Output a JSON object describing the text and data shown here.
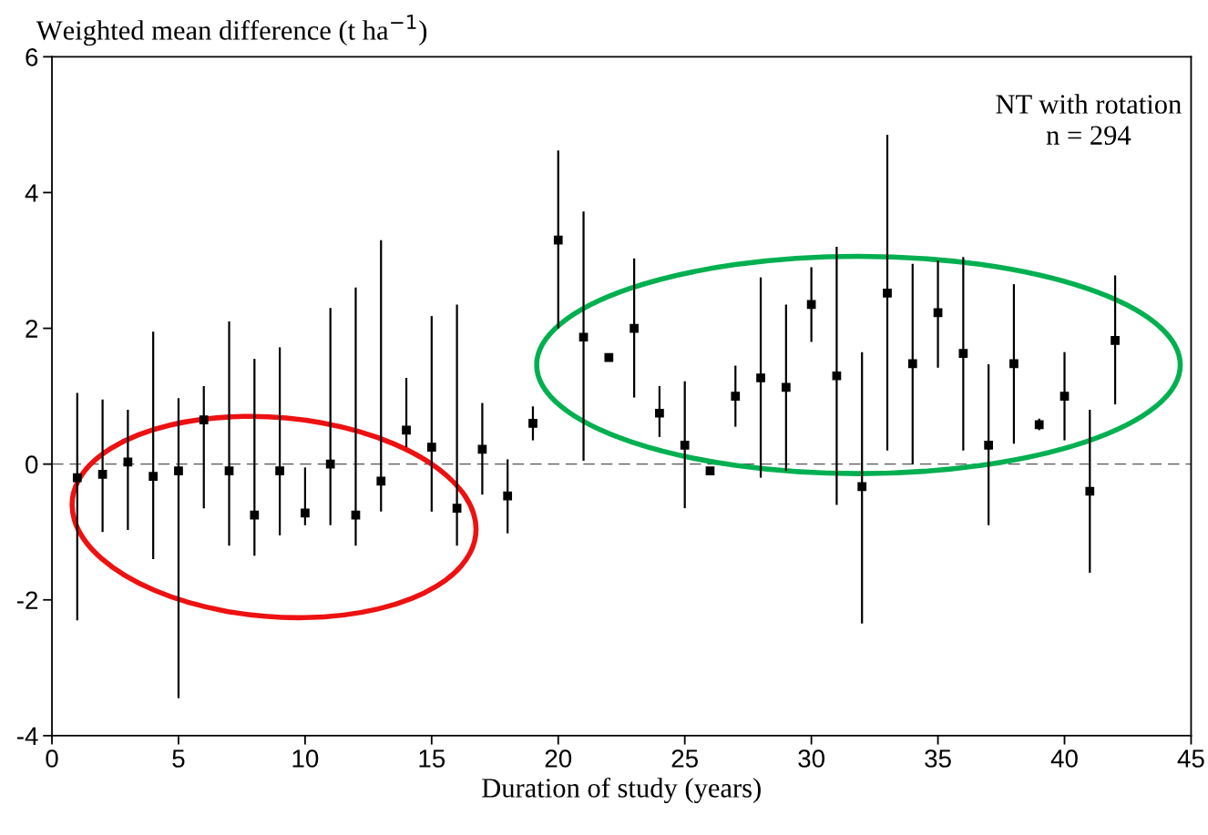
{
  "chart_data": {
    "type": "scatter",
    "ylabel": "Weighted mean difference (t ha$^{−1}$)",
    "xlabel": "Duration of study (years)",
    "annotations": [
      "NT with rotation\nn = 294"
    ],
    "x": [
      1,
      2,
      3,
      4,
      5,
      6,
      7,
      8,
      9,
      10,
      11,
      12,
      13,
      14,
      15,
      16,
      17,
      18,
      19,
      20,
      21,
      22,
      23,
      24,
      25,
      26,
      27,
      28,
      29,
      30,
      31,
      32,
      33,
      34,
      35,
      36,
      37,
      38,
      39,
      40,
      41,
      42
    ],
    "series": [
      {
        "color": "#000000",
        "values": [
          -0.2,
          -0.15,
          0.03,
          -0.18,
          -0.1,
          0.65,
          -0.1,
          -0.75,
          -0.1,
          -0.72,
          0.0,
          -0.75,
          -0.25,
          0.5,
          0.25,
          -0.65,
          0.22,
          -0.47,
          0.6,
          3.3,
          1.87,
          1.57,
          2.0,
          0.75,
          0.28,
          -0.1,
          1.0,
          1.27,
          1.13,
          2.35,
          1.3,
          -0.33,
          2.52,
          1.48,
          2.23,
          1.63,
          0.28,
          1.48,
          0.58,
          1.0,
          -0.4,
          1.82
        ],
        "errors": [
          [
            -2.3,
            1.05
          ],
          [
            -1.0,
            0.95
          ],
          [
            -0.97,
            0.8
          ],
          [
            -1.4,
            1.95
          ],
          [
            -3.45,
            0.97
          ],
          [
            -0.65,
            1.15
          ],
          [
            -1.2,
            2.1
          ],
          [
            -1.35,
            1.55
          ],
          [
            -1.05,
            1.72
          ],
          [
            -0.9,
            -0.05
          ],
          [
            -0.9,
            2.3
          ],
          [
            -1.2,
            2.6
          ],
          [
            -0.7,
            3.3
          ],
          [
            0.25,
            1.27
          ],
          [
            -0.7,
            2.18
          ],
          [
            -1.2,
            2.35
          ],
          [
            -0.45,
            0.9
          ],
          [
            -1.02,
            0.07
          ],
          [
            0.35,
            0.85
          ],
          [
            2.0,
            4.62
          ],
          [
            0.05,
            3.72
          ],
          null,
          [
            0.98,
            3.03
          ],
          [
            0.4,
            1.15
          ],
          [
            -0.65,
            1.22
          ],
          null,
          [
            0.55,
            1.45
          ],
          [
            -0.2,
            2.75
          ],
          [
            -0.1,
            2.35
          ],
          [
            1.8,
            2.9
          ],
          [
            -0.6,
            3.2
          ],
          [
            -2.35,
            1.65
          ],
          [
            0.2,
            4.85
          ],
          [
            0.0,
            2.95
          ],
          [
            1.42,
            3.0
          ],
          [
            0.2,
            3.05
          ],
          [
            -0.9,
            1.47
          ],
          [
            0.3,
            2.65
          ],
          [
            0.5,
            0.67
          ],
          [
            0.35,
            1.65
          ],
          [
            -1.6,
            0.8
          ],
          [
            0.88,
            2.78
          ]
        ]
      }
    ],
    "marker": "square",
    "grid": false,
    "legend": false,
    "xlim": [
      0,
      45
    ],
    "xticks": [
      0,
      5,
      10,
      15,
      20,
      25,
      30,
      35,
      40,
      45
    ],
    "ylim": [
      -4,
      6
    ],
    "yticks": [
      -4,
      -2,
      0,
      2,
      4,
      6
    ],
    "ref_lines": [
      {
        "axis": "y",
        "value": 0,
        "color": "#555555",
        "line_style": "dashed"
      }
    ]
  }
}
